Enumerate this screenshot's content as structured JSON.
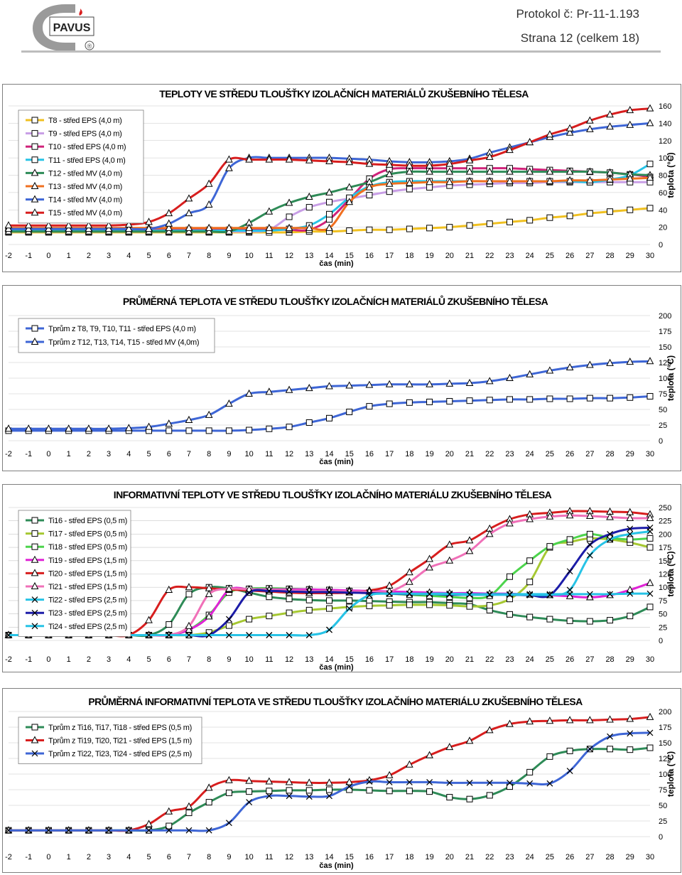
{
  "header": {
    "protocol": "Protokol č: Pr-11-1.193",
    "page": "Strana 12 (celkem 18)",
    "logo_text": "PAVUS",
    "logo_mark": "®"
  },
  "colors": {
    "frame": "#7f7f7f",
    "grid": "#c8c8c8"
  },
  "chart_data": [
    {
      "type": "line",
      "title": "TEPLOTY VE STŘEDU TLOUŠŤKY IZOLAČNÍCH MATERIÁLŮ ZKUŠEBNÍHO TĚLESA",
      "xlabel": "čas (min)",
      "ylabel": "teplota (°C)",
      "xlim": [
        -2,
        30
      ],
      "ylim": [
        0,
        160
      ],
      "yticks": [
        0,
        20,
        40,
        60,
        80,
        100,
        120,
        140,
        160
      ],
      "legend_position": "top-left",
      "x": [
        -2,
        -1,
        0,
        1,
        2,
        3,
        4,
        5,
        6,
        7,
        8,
        9,
        10,
        11,
        12,
        13,
        14,
        15,
        16,
        17,
        18,
        19,
        20,
        21,
        22,
        23,
        24,
        25,
        26,
        27,
        28,
        29,
        30
      ],
      "series": [
        {
          "name": "T8 - střed EPS (4,0 m)",
          "color": "#f0c020",
          "marker": "square",
          "values": [
            14,
            14,
            14,
            14,
            14,
            14,
            14,
            14,
            14,
            14,
            14,
            14,
            14,
            14,
            14,
            15,
            15,
            16,
            17,
            17,
            18,
            19,
            20,
            22,
            24,
            26,
            28,
            31,
            33,
            36,
            38,
            40,
            42
          ]
        },
        {
          "name": "T9 - střed EPS (4,0 m)",
          "color": "#c89ee6",
          "marker": "square",
          "values": [
            15,
            15,
            15,
            15,
            15,
            15,
            15,
            15,
            15,
            15,
            15,
            15,
            15,
            17,
            32,
            43,
            49,
            53,
            57,
            61,
            64,
            66,
            68,
            69,
            70,
            71,
            71,
            72,
            72,
            72,
            72,
            72,
            72
          ]
        },
        {
          "name": "T10 - střed EPS (4,0 m)",
          "color": "#d0237a",
          "marker": "square",
          "values": [
            17,
            17,
            17,
            17,
            17,
            17,
            17,
            17,
            17,
            17,
            17,
            17,
            17,
            17,
            17,
            17,
            29,
            52,
            76,
            87,
            88,
            88,
            88,
            88,
            88,
            88,
            87,
            86,
            85,
            84,
            83,
            81,
            78
          ]
        },
        {
          "name": "T11 - střed EPS (4,0 m)",
          "color": "#27c3e6",
          "marker": "square",
          "values": [
            16,
            16,
            16,
            16,
            16,
            16,
            16,
            16,
            16,
            16,
            16,
            16,
            16,
            16,
            18,
            22,
            35,
            54,
            67,
            72,
            73,
            73,
            73,
            73,
            73,
            73,
            73,
            73,
            73,
            72,
            75,
            80,
            93
          ]
        },
        {
          "name": "T12 - střed MV (4,0 m)",
          "color": "#2e8b57",
          "marker": "triangle",
          "values": [
            15,
            15,
            15,
            15,
            15,
            15,
            15,
            15,
            15,
            15,
            15,
            15,
            25,
            38,
            48,
            55,
            60,
            66,
            72,
            81,
            84,
            84,
            84,
            84,
            84,
            84,
            84,
            84,
            84,
            84,
            83,
            81,
            80
          ]
        },
        {
          "name": "T13 - střed MV (4,0 m)",
          "color": "#f07020",
          "marker": "triangle",
          "values": [
            19,
            19,
            19,
            19,
            19,
            19,
            19,
            19,
            19,
            19,
            19,
            19,
            19,
            19,
            19,
            19,
            19,
            49,
            66,
            70,
            71,
            72,
            72,
            73,
            73,
            73,
            73,
            73,
            74,
            74,
            75,
            76,
            77
          ]
        },
        {
          "name": "T14 - střed MV (4,0 m)",
          "color": "#3e66d6",
          "marker": "triangle",
          "values": [
            18,
            18,
            18,
            18,
            18,
            18,
            18,
            18,
            24,
            36,
            46,
            88,
            100,
            100,
            100,
            100,
            100,
            99,
            98,
            96,
            95,
            95,
            96,
            99,
            106,
            112,
            118,
            124,
            129,
            133,
            136,
            138,
            140
          ]
        },
        {
          "name": "T15 - střed MV (4,0 m)",
          "color": "#d81e1e",
          "marker": "triangle",
          "values": [
            22,
            22,
            22,
            22,
            22,
            22,
            23,
            26,
            36,
            53,
            70,
            98,
            98,
            98,
            98,
            97,
            96,
            95,
            93,
            92,
            91,
            91,
            93,
            97,
            101,
            109,
            118,
            127,
            134,
            143,
            150,
            155,
            157
          ]
        }
      ]
    },
    {
      "type": "line",
      "title": "PRŮMĚRNÁ TEPLOTA VE STŘEDU TLOUŠŤKY IZOLAČNÍCH MATERIÁLŮ ZKUŠEBNÍHO TĚLESA",
      "xlabel": "čas (min)",
      "ylabel": "teplota (°C)",
      "xlim": [
        -2,
        30
      ],
      "ylim": [
        0,
        200
      ],
      "yticks": [
        0,
        25,
        50,
        75,
        100,
        125,
        150,
        175,
        200
      ],
      "legend_position": "top-left",
      "x": [
        -2,
        -1,
        0,
        1,
        2,
        3,
        4,
        5,
        6,
        7,
        8,
        9,
        10,
        11,
        12,
        13,
        14,
        15,
        16,
        17,
        18,
        19,
        20,
        21,
        22,
        23,
        24,
        25,
        26,
        27,
        28,
        29,
        30
      ],
      "series": [
        {
          "name": "Tprům z T8, T9, T10, T11 - střed EPS  (4,0 m)",
          "color": "#3e66d6",
          "marker": "square",
          "values": [
            16,
            16,
            16,
            16,
            16,
            16,
            16,
            16,
            16,
            16,
            16,
            16,
            17,
            19,
            22,
            29,
            36,
            46,
            55,
            59,
            61,
            62,
            63,
            64,
            65,
            66,
            66,
            67,
            67,
            68,
            68,
            69,
            71
          ]
        },
        {
          "name": "Tprům z T12, T13, T14, T15 - střed MV (4,0m)",
          "color": "#3e66d6",
          "marker": "triangle",
          "values": [
            19,
            19,
            19,
            19,
            19,
            19,
            20,
            22,
            27,
            33,
            41,
            59,
            75,
            78,
            81,
            84,
            87,
            88,
            89,
            90,
            90,
            90,
            91,
            92,
            95,
            100,
            106,
            112,
            117,
            121,
            124,
            126,
            127
          ]
        }
      ]
    },
    {
      "type": "line",
      "title": "INFORMATIVNÍ TEPLOTY VE STŘEDU TLOUŠŤKY IZOLAČNÍHO MATERIÁLU ZKUŠEBNÍHO TĚLESA",
      "xlabel": "čas (min)",
      "ylabel": "teplota (°C)",
      "xlim": [
        -2,
        30
      ],
      "ylim": [
        0,
        250
      ],
      "yticks": [
        0,
        25,
        50,
        75,
        100,
        125,
        150,
        175,
        200,
        225,
        250
      ],
      "legend_position": "top-left",
      "x": [
        -2,
        -1,
        0,
        1,
        2,
        3,
        4,
        5,
        6,
        7,
        8,
        9,
        10,
        11,
        12,
        13,
        14,
        15,
        16,
        17,
        18,
        19,
        20,
        21,
        22,
        23,
        24,
        25,
        26,
        27,
        28,
        29,
        30
      ],
      "series": [
        {
          "name": "Ti16 - střed EPS (0,5 m)",
          "color": "#2e8b57",
          "marker": "square",
          "values": [
            10,
            10,
            10,
            10,
            10,
            10,
            10,
            10,
            30,
            87,
            100,
            98,
            90,
            82,
            78,
            76,
            75,
            75,
            74,
            73,
            72,
            72,
            70,
            68,
            57,
            49,
            44,
            40,
            37,
            36,
            38,
            46,
            63
          ]
        },
        {
          "name": "Ti17 - střed EPS (0,5 m)",
          "color": "#a6c832",
          "marker": "square",
          "values": [
            10,
            10,
            10,
            10,
            10,
            10,
            10,
            10,
            10,
            10,
            15,
            28,
            40,
            46,
            52,
            57,
            60,
            63,
            65,
            66,
            67,
            67,
            66,
            64,
            66,
            78,
            110,
            175,
            185,
            192,
            190,
            184,
            175
          ]
        },
        {
          "name": "Ti18 - střed EPS (0,5 m)",
          "color": "#4cd44c",
          "marker": "square",
          "values": [
            10,
            10,
            10,
            10,
            10,
            10,
            10,
            10,
            10,
            20,
            48,
            90,
            97,
            98,
            97,
            96,
            95,
            93,
            90,
            88,
            86,
            84,
            82,
            80,
            84,
            120,
            150,
            177,
            190,
            200,
            193,
            190,
            192
          ]
        },
        {
          "name": "Ti19 - střed EPS (1,5 m)",
          "color": "#e023d6",
          "marker": "triangle",
          "values": [
            10,
            10,
            10,
            10,
            10,
            10,
            10,
            10,
            10,
            20,
            45,
            95,
            96,
            96,
            96,
            96,
            95,
            94,
            93,
            92,
            91,
            90,
            89,
            89,
            88,
            88,
            86,
            85,
            83,
            81,
            85,
            95,
            108
          ]
        },
        {
          "name": "Ti20 - střed EPS (1,5 m)",
          "color": "#d81e1e",
          "marker": "triangle",
          "values": [
            10,
            10,
            10,
            10,
            10,
            10,
            10,
            38,
            95,
            100,
            98,
            96,
            94,
            92,
            90,
            89,
            89,
            90,
            94,
            103,
            128,
            153,
            180,
            188,
            210,
            228,
            237,
            240,
            243,
            243,
            242,
            241,
            237
          ]
        },
        {
          "name": "Ti21 - střed EPS (1,5 m)",
          "color": "#f070b8",
          "marker": "triangle",
          "values": [
            10,
            10,
            10,
            10,
            10,
            10,
            10,
            10,
            10,
            27,
            87,
            97,
            96,
            95,
            94,
            93,
            93,
            92,
            92,
            92,
            110,
            137,
            150,
            168,
            200,
            220,
            228,
            233,
            235,
            234,
            232,
            230,
            230
          ]
        },
        {
          "name": "Ti22 - střed EPS (2,5 m)",
          "color": "#27c3e6",
          "marker": "x",
          "values": [
            10,
            10,
            10,
            10,
            10,
            10,
            10,
            10,
            10,
            10,
            10,
            10,
            10,
            10,
            10,
            10,
            20,
            60,
            85,
            88,
            88,
            88,
            88,
            87,
            87,
            87,
            87,
            87,
            87,
            87,
            87,
            88,
            88
          ]
        },
        {
          "name": "Ti23 - střed EPS (2,5 m)",
          "color": "#1c1ca8",
          "marker": "x",
          "values": [
            10,
            10,
            10,
            10,
            10,
            10,
            10,
            10,
            10,
            10,
            10,
            40,
            90,
            93,
            92,
            91,
            91,
            90,
            89,
            88,
            87,
            87,
            86,
            86,
            86,
            86,
            85,
            85,
            130,
            180,
            200,
            210,
            212
          ]
        },
        {
          "name": "Ti24 - střed EPS (2,5 m)",
          "color": "#27c3e6",
          "marker": "x",
          "values": [
            10,
            10,
            10,
            10,
            10,
            10,
            10,
            10,
            10,
            10,
            10,
            10,
            10,
            10,
            10,
            10,
            20,
            60,
            85,
            88,
            88,
            87,
            87,
            86,
            86,
            86,
            86,
            86,
            95,
            160,
            190,
            200,
            205
          ]
        }
      ]
    },
    {
      "type": "line",
      "title": "PRŮMĚRNÁ INFORMATIVNÍ TEPLOTA VE STŘEDU TLOUŠŤKY IZOLAČNÍHO MATERIÁLU ZKUŠEBNÍHO TĚLESA",
      "xlabel": "čas (min)",
      "ylabel": "teplota (°C)",
      "xlim": [
        -2,
        30
      ],
      "ylim": [
        0,
        200
      ],
      "yticks": [
        0,
        25,
        50,
        75,
        100,
        125,
        150,
        175,
        200
      ],
      "legend_position": "top-left",
      "x": [
        -2,
        -1,
        0,
        1,
        2,
        3,
        4,
        5,
        6,
        7,
        8,
        9,
        10,
        11,
        12,
        13,
        14,
        15,
        16,
        17,
        18,
        19,
        20,
        21,
        22,
        23,
        24,
        25,
        26,
        27,
        28,
        29,
        30
      ],
      "series": [
        {
          "name": "Tprům z Ti16, Ti17, Ti18 - střed EPS  (0,5 m)",
          "color": "#2e8b57",
          "marker": "square",
          "values": [
            10,
            10,
            10,
            10,
            10,
            10,
            10,
            10,
            17,
            38,
            55,
            70,
            72,
            73,
            74,
            74,
            75,
            75,
            74,
            73,
            73,
            72,
            63,
            60,
            66,
            80,
            103,
            128,
            137,
            140,
            140,
            139,
            142
          ]
        },
        {
          "name": "Tprům z Ti19, Ti20, Ti21 - střed EPS  (1,5 m)",
          "color": "#d81e1e",
          "marker": "triangle",
          "values": [
            10,
            10,
            10,
            10,
            10,
            10,
            10,
            20,
            40,
            48,
            78,
            90,
            89,
            88,
            87,
            86,
            86,
            87,
            90,
            98,
            115,
            130,
            143,
            153,
            170,
            180,
            184,
            185,
            186,
            186,
            187,
            188,
            191
          ]
        },
        {
          "name": "Tprům z Ti22, Ti23, Ti24 - střed EPS  (2,5 m)",
          "color": "#3e66d6",
          "marker": "x",
          "values": [
            10,
            10,
            10,
            10,
            10,
            10,
            10,
            10,
            10,
            10,
            10,
            22,
            55,
            65,
            65,
            64,
            65,
            80,
            88,
            87,
            87,
            87,
            86,
            86,
            86,
            86,
            85,
            85,
            105,
            140,
            160,
            165,
            166
          ]
        }
      ]
    }
  ]
}
